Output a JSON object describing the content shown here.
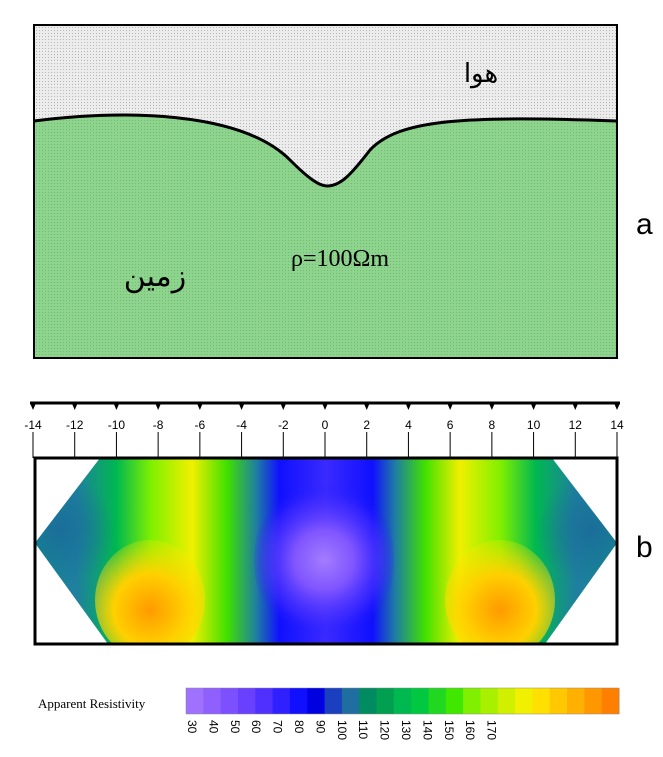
{
  "panel_a": {
    "air_label": "هوا",
    "ground_label": "زمین",
    "resistivity_label": "ρ=100Ωm",
    "panel_letter": "a",
    "colors": {
      "air": "#ececec",
      "ground": "#8fd48f",
      "outline": "#000000"
    }
  },
  "panel_b": {
    "panel_letter": "b",
    "axis_ticks": [
      "-14",
      "-12",
      "-10",
      "-8",
      "-6",
      "-4",
      "-2",
      "0",
      "2",
      "4",
      "6",
      "8",
      "10",
      "12",
      "14"
    ],
    "axis_range": [
      -14,
      14
    ]
  },
  "colorbar": {
    "label": "Apparent Resistivity",
    "ticks": [
      "30",
      "40",
      "50",
      "60",
      "70",
      "80",
      "90",
      "100",
      "110",
      "120",
      "130",
      "140",
      "150",
      "160",
      "170"
    ],
    "colors": [
      "#a070ff",
      "#9060ff",
      "#7d50ff",
      "#6a40ff",
      "#5030ff",
      "#3020ff",
      "#1010ff",
      "#0000e0",
      "#1a40c0",
      "#1f6ea0",
      "#008c60",
      "#00a050",
      "#00b850",
      "#00c840",
      "#20d820",
      "#40e800",
      "#80f000",
      "#a8f000",
      "#d0f000",
      "#f0f000",
      "#ffe000",
      "#ffc800",
      "#ffb000",
      "#ff9800",
      "#ff8000"
    ]
  }
}
